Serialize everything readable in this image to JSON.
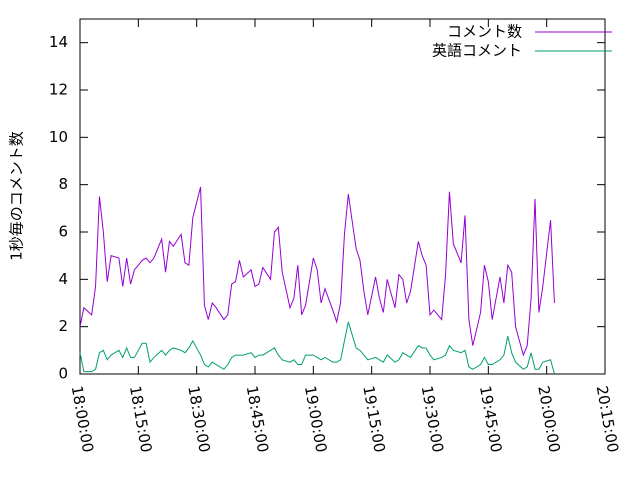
{
  "chart_data": {
    "type": "line",
    "ylabel": "1秒毎のコメント数",
    "x": [
      1080,
      1081,
      1083,
      1084,
      1085,
      1086,
      1087,
      1088,
      1090,
      1091,
      1092,
      1093,
      1094,
      1096,
      1097,
      1098,
      1099,
      1101,
      1102,
      1103,
      1104,
      1106,
      1107,
      1108,
      1109,
      1111,
      1112,
      1113,
      1114,
      1115,
      1117,
      1118,
      1119,
      1120,
      1121,
      1122,
      1124,
      1125,
      1126,
      1127,
      1129,
      1130,
      1131,
      1132,
      1134,
      1135,
      1136,
      1137,
      1138,
      1140,
      1141,
      1142,
      1143,
      1145,
      1146,
      1147,
      1148,
      1149,
      1151,
      1152,
      1153,
      1154,
      1156,
      1157,
      1158,
      1159,
      1161,
      1162,
      1163,
      1164,
      1165,
      1167,
      1168,
      1169,
      1170,
      1171,
      1173,
      1174,
      1175,
      1176,
      1178,
      1179,
      1180,
      1181,
      1183,
      1184,
      1185,
      1186,
      1188,
      1189,
      1190,
      1191,
      1192,
      1194,
      1195,
      1196,
      1197,
      1198,
      1199,
      1201,
      1202
    ],
    "series": [
      {
        "name": "コメント数",
        "color": "#9400d3",
        "values": [
          2.0,
          2.8,
          2.5,
          3.7,
          7.5,
          6.0,
          3.9,
          5.0,
          4.9,
          3.7,
          4.9,
          3.8,
          4.4,
          4.8,
          4.9,
          4.7,
          4.9,
          5.7,
          4.3,
          5.6,
          5.4,
          5.9,
          4.7,
          4.6,
          6.6,
          7.9,
          2.9,
          2.3,
          3.0,
          2.8,
          2.3,
          2.5,
          3.8,
          3.9,
          4.8,
          4.1,
          4.4,
          3.7,
          3.8,
          4.5,
          4.0,
          6.0,
          6.2,
          4.3,
          2.8,
          3.2,
          4.6,
          2.5,
          2.9,
          4.9,
          4.4,
          3.0,
          3.6,
          2.7,
          2.2,
          3.0,
          5.9,
          7.6,
          5.3,
          4.8,
          3.5,
          2.5,
          4.1,
          3.2,
          2.6,
          4.0,
          2.8,
          4.2,
          4.0,
          3.0,
          3.5,
          5.6,
          5.0,
          4.6,
          2.5,
          2.7,
          2.3,
          4.2,
          7.7,
          5.5,
          4.7,
          6.7,
          2.3,
          1.2,
          2.6,
          4.6,
          3.9,
          2.3,
          4.1,
          3.0,
          4.6,
          4.3,
          2.0,
          0.8,
          1.2,
          3.2,
          7.4,
          2.6,
          3.7,
          6.5,
          3.0
        ]
      },
      {
        "name": "英語コメント",
        "color": "#009e73",
        "values": [
          0.9,
          0.1,
          0.1,
          0.2,
          0.9,
          1.0,
          0.6,
          0.8,
          1.0,
          0.7,
          1.1,
          0.7,
          0.7,
          1.3,
          1.3,
          0.5,
          0.7,
          1.0,
          0.8,
          1.0,
          1.1,
          1.0,
          0.9,
          1.1,
          1.4,
          0.8,
          0.4,
          0.3,
          0.5,
          0.4,
          0.2,
          0.4,
          0.7,
          0.8,
          0.8,
          0.8,
          0.9,
          0.7,
          0.8,
          0.8,
          1.0,
          1.1,
          0.8,
          0.6,
          0.5,
          0.6,
          0.4,
          0.4,
          0.8,
          0.8,
          0.7,
          0.6,
          0.7,
          0.5,
          0.5,
          0.6,
          1.4,
          2.2,
          1.1,
          1.0,
          0.8,
          0.6,
          0.7,
          0.6,
          0.5,
          0.8,
          0.5,
          0.6,
          0.9,
          0.8,
          0.7,
          1.2,
          1.1,
          1.1,
          0.8,
          0.6,
          0.7,
          0.8,
          1.2,
          1.0,
          0.9,
          1.0,
          0.3,
          0.2,
          0.4,
          0.7,
          0.4,
          0.4,
          0.6,
          0.8,
          1.6,
          0.9,
          0.5,
          0.2,
          0.3,
          0.9,
          0.2,
          0.2,
          0.5,
          0.6,
          0.0
        ]
      }
    ],
    "xlim": [
      1080,
      1215
    ],
    "xticks": [
      {
        "value": 1080,
        "label": "18:00:00"
      },
      {
        "value": 1095,
        "label": "18:15:00"
      },
      {
        "value": 1110,
        "label": "18:30:00"
      },
      {
        "value": 1125,
        "label": "18:45:00"
      },
      {
        "value": 1140,
        "label": "19:00:00"
      },
      {
        "value": 1155,
        "label": "19:15:00"
      },
      {
        "value": 1170,
        "label": "19:30:00"
      },
      {
        "value": 1185,
        "label": "19:45:00"
      },
      {
        "value": 1200,
        "label": "20:00:00"
      },
      {
        "value": 1215,
        "label": "20:15:00"
      }
    ],
    "ylim": [
      0,
      15
    ],
    "yticks": [
      0,
      2,
      4,
      6,
      8,
      10,
      12,
      14
    ],
    "legend": "top-right",
    "grid": false
  }
}
